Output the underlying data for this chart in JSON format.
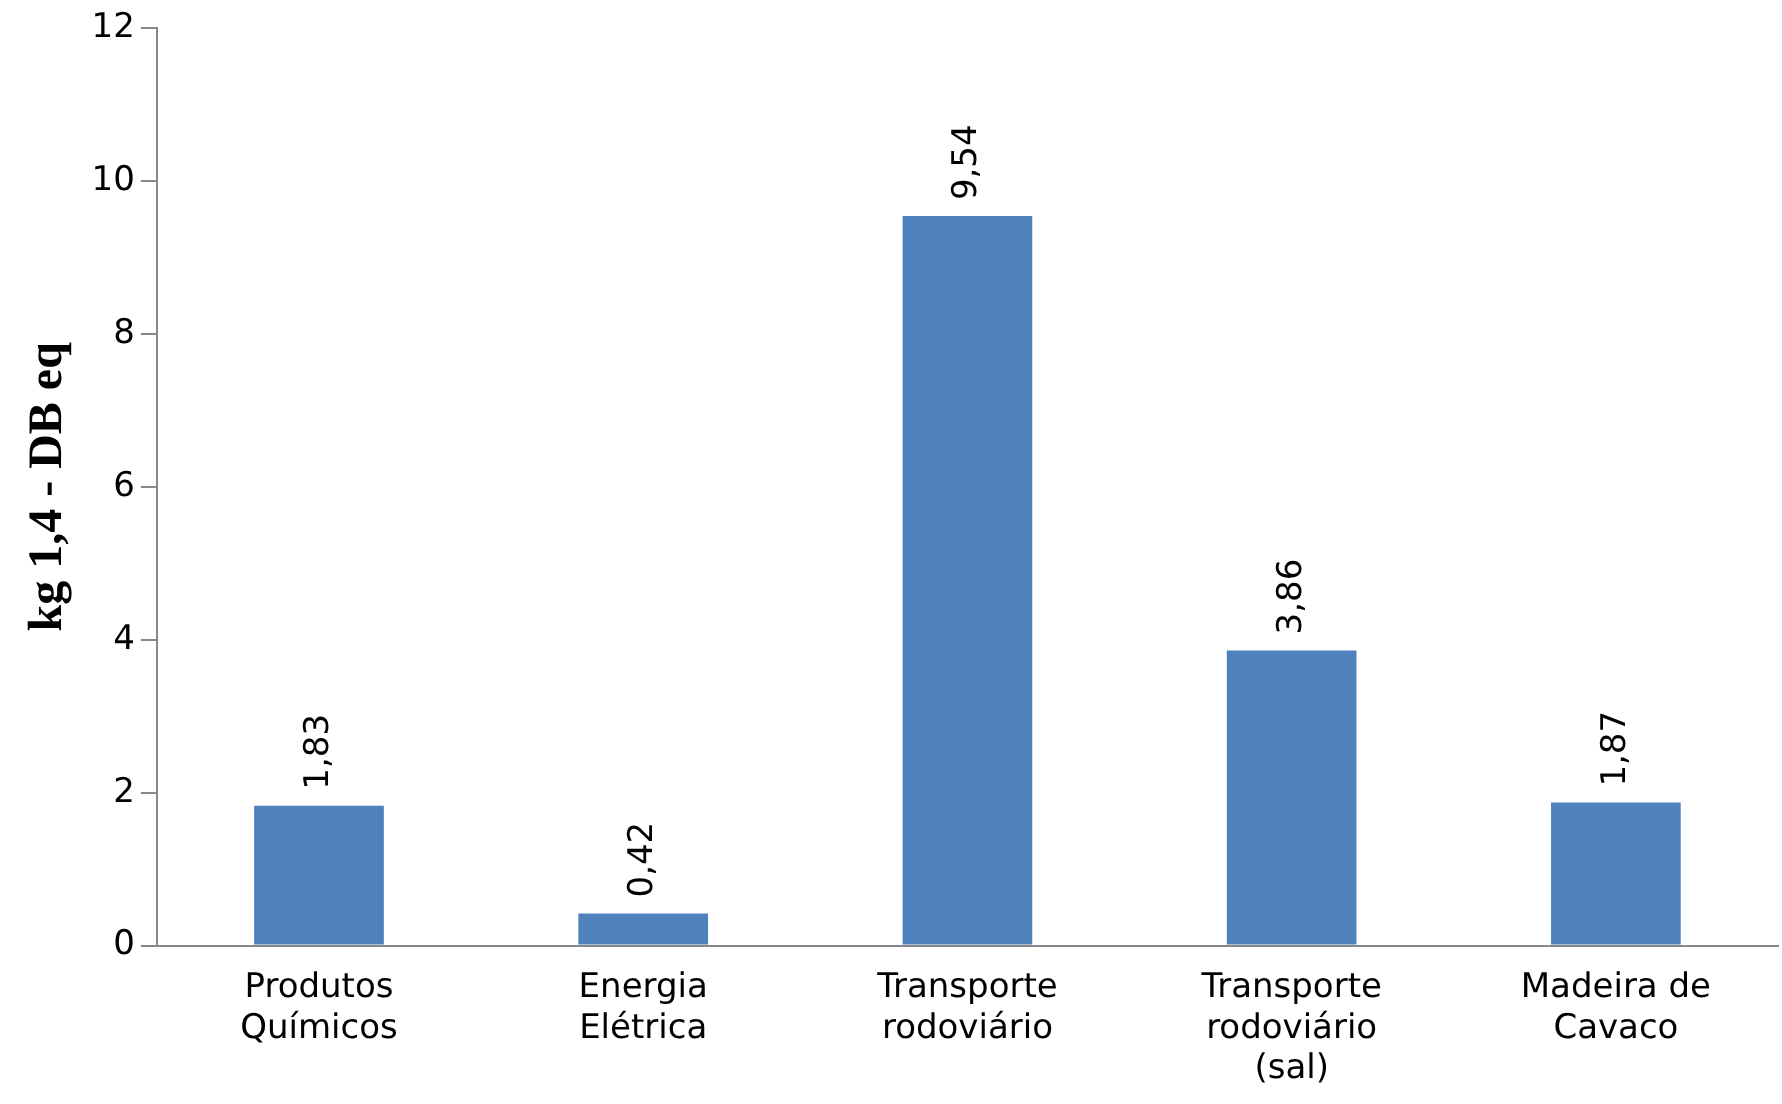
{
  "chart_data": {
    "type": "bar",
    "ylabel": "kg 1,4 - DB eq",
    "categories": [
      "Produtos Químicos",
      "Energia Elétrica",
      "Transporte rodoviário",
      "Transporte rodoviário (sal)",
      "Madeira de Cavaco"
    ],
    "values": [
      1.83,
      0.42,
      9.54,
      3.86,
      1.87
    ],
    "value_labels": [
      "1,83",
      "0,42",
      "9,54",
      "3,86",
      "1,87"
    ],
    "color": "#4f81bd",
    "ylim": [
      0,
      12
    ],
    "yticks": [
      0,
      2,
      4,
      6,
      8,
      10,
      12
    ],
    "grid": false,
    "legend": false
  }
}
